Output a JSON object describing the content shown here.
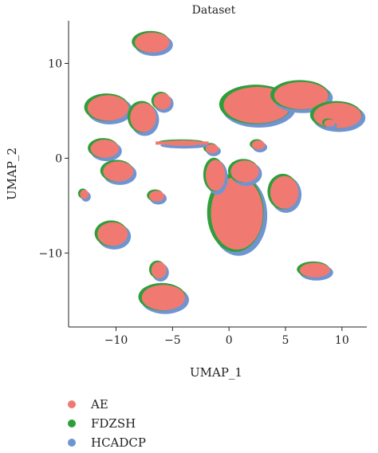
{
  "chart_data": {
    "type": "scatter",
    "title": "Dataset",
    "xlabel": "UMAP_1",
    "ylabel": "UMAP_2",
    "xlim": [
      -14.2,
      12.2
    ],
    "ylim": [
      -17.8,
      14.5
    ],
    "xticks": [
      -10,
      -5,
      0,
      5,
      10
    ],
    "yticks": [
      -10,
      0,
      10
    ],
    "grid": false,
    "legend_position": "bottom-left",
    "series": [
      {
        "name": "AE",
        "color": "#f07a72"
      },
      {
        "name": "FDZSH",
        "color": "#2f9e3a"
      },
      {
        "name": "HCADCP",
        "color": "#6f95d1"
      }
    ],
    "clusters": [
      {
        "cx": -6.8,
        "cy": 12.2,
        "rx": 1.6,
        "ry": 1.1
      },
      {
        "cx": -10.7,
        "cy": 5.3,
        "rx": 1.9,
        "ry": 1.4
      },
      {
        "cx": -7.6,
        "cy": 4.3,
        "rx": 1.2,
        "ry": 1.6
      },
      {
        "cx": -5.9,
        "cy": 6.0,
        "rx": 0.8,
        "ry": 0.9
      },
      {
        "cx": -11.0,
        "cy": 1.0,
        "rx": 1.3,
        "ry": 1.0
      },
      {
        "cx": -9.8,
        "cy": -1.4,
        "rx": 1.4,
        "ry": 1.1
      },
      {
        "cx": -6.4,
        "cy": -4.0,
        "rx": 0.7,
        "ry": 0.6
      },
      {
        "cx": -12.8,
        "cy": -3.8,
        "rx": 0.4,
        "ry": 0.5
      },
      {
        "cx": -10.3,
        "cy": -8.0,
        "rx": 1.4,
        "ry": 1.3
      },
      {
        "cx": -6.2,
        "cy": -11.8,
        "rx": 0.7,
        "ry": 0.9
      },
      {
        "cx": -5.8,
        "cy": -14.7,
        "rx": 2.0,
        "ry": 1.4
      },
      {
        "cx": 2.5,
        "cy": 5.6,
        "rx": 3.1,
        "ry": 2.0
      },
      {
        "cx": 6.4,
        "cy": 6.6,
        "rx": 2.5,
        "ry": 1.5
      },
      {
        "cx": 9.6,
        "cy": 4.5,
        "rx": 2.2,
        "ry": 1.4
      },
      {
        "cx": 0.7,
        "cy": -5.8,
        "rx": 2.4,
        "ry": 4.0
      },
      {
        "cx": 1.4,
        "cy": -1.4,
        "rx": 1.3,
        "ry": 1.2
      },
      {
        "cx": -1.2,
        "cy": -1.8,
        "rx": 0.9,
        "ry": 1.7
      },
      {
        "cx": -1.5,
        "cy": 1.0,
        "rx": 0.6,
        "ry": 0.5
      },
      {
        "cx": -4.1,
        "cy": 1.6,
        "rx": 2.0,
        "ry": 0.3
      },
      {
        "cx": 2.6,
        "cy": 1.4,
        "rx": 0.6,
        "ry": 0.5
      },
      {
        "cx": 4.9,
        "cy": -3.6,
        "rx": 1.3,
        "ry": 1.8
      },
      {
        "cx": 7.6,
        "cy": -11.8,
        "rx": 1.4,
        "ry": 0.8
      },
      {
        "cx": 8.9,
        "cy": 3.7,
        "rx": 0.5,
        "ry": 0.4
      }
    ]
  },
  "legend": [
    {
      "label": "AE",
      "color": "#f07a72"
    },
    {
      "label": "FDZSH",
      "color": "#2f9e3a"
    },
    {
      "label": "HCADCP",
      "color": "#6f95d1"
    }
  ]
}
